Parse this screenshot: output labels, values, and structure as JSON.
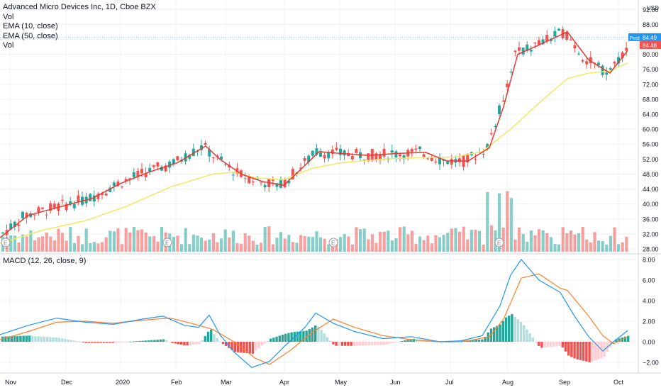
{
  "legend": {
    "title": "Advanced Micro Devices Inc, 1D, Cboe BZX",
    "vol1": "Vol",
    "ema10": "EMA (10, close)",
    "ema50": "EMA (50, close)",
    "vol2": "Vol"
  },
  "macd_legend": "MACD (12, 26, close, 9)",
  "currency": "USD",
  "tags": {
    "post_label": "Post",
    "post_value": "84.49",
    "last_value": "84.48"
  },
  "colors": {
    "up": "#26a69a",
    "down": "#ef5350",
    "ema10": "#e53935",
    "ema50": "#f5e663",
    "macd": "#2196f3",
    "signal": "#ff7f2a",
    "post": "#2196f3"
  },
  "earnings_marker": "E",
  "chart_data": [
    {
      "type": "candlestick",
      "title": "Advanced Micro Devices Inc, 1D, Cboe BZX",
      "y_ticks": [
        "92.00",
        "88.00",
        "84.00",
        "80.00",
        "76.00",
        "72.00",
        "68.00",
        "64.00",
        "60.00",
        "56.00",
        "52.00",
        "48.00",
        "44.00",
        "40.00",
        "36.00",
        "32.00",
        "28.00"
      ],
      "ylim": [
        26.5,
        95
      ],
      "x_ticks": [
        "Nov",
        "Dec",
        "2020",
        "Feb",
        "Mar",
        "Apr",
        "May",
        "Jun",
        "Jul",
        "Aug",
        "Sep",
        "Oct"
      ],
      "series": [
        {
          "name": "EMA (10, close)",
          "points": [
            [
              0,
              31.0
            ],
            [
              40,
              37
            ],
            [
              90,
              39.5
            ],
            [
              130,
              41.5
            ],
            [
              170,
              45.5
            ],
            [
              210,
              48.5
            ],
            [
              250,
              51.0
            ],
            [
              290,
              55.5
            ],
            [
              310,
              52.0
            ],
            [
              340,
              48.0
            ],
            [
              370,
              46.0
            ],
            [
              400,
              45.0
            ],
            [
              420,
              48.5
            ],
            [
              450,
              54.0
            ],
            [
              480,
              53.5
            ],
            [
              520,
              53.0
            ],
            [
              560,
              53.5
            ],
            [
              600,
              53.8
            ],
            [
              630,
              51.5
            ],
            [
              660,
              51.5
            ],
            [
              690,
              55.0
            ],
            [
              710,
              66.0
            ],
            [
              730,
              80.0
            ],
            [
              760,
              82.5
            ],
            [
              800,
              86.0
            ],
            [
              830,
              78.5
            ],
            [
              860,
              75.0
            ],
            [
              885,
              81.0
            ]
          ]
        },
        {
          "name": "EMA (50, close)",
          "points": [
            [
              0,
              29.5
            ],
            [
              60,
              33.0
            ],
            [
              120,
              35.5
            ],
            [
              180,
              39.5
            ],
            [
              240,
              44.5
            ],
            [
              300,
              48.0
            ],
            [
              330,
              48.5
            ],
            [
              360,
              47.0
            ],
            [
              400,
              46.5
            ],
            [
              440,
              49.5
            ],
            [
              480,
              51.0
            ],
            [
              540,
              52.0
            ],
            [
              600,
              52.5
            ],
            [
              640,
              52.5
            ],
            [
              680,
              54.0
            ],
            [
              720,
              60.0
            ],
            [
              760,
              67.0
            ],
            [
              800,
              73.5
            ],
            [
              830,
              75.0
            ],
            [
              860,
              75.5
            ],
            [
              885,
              77.7
            ]
          ]
        }
      ],
      "earnings_x": [
        8,
        236,
        470,
        704
      ]
    },
    {
      "type": "line",
      "title": "MACD (12, 26, close, 9)",
      "y_ticks": [
        "8.00",
        "6.00",
        "4.00",
        "2.00",
        "0.00",
        "−2.00"
      ],
      "ylim": [
        -3.0,
        8.5
      ],
      "series": [
        {
          "name": "MACD",
          "points": [
            [
              0,
              0.7
            ],
            [
              40,
              1.6
            ],
            [
              80,
              2.3
            ],
            [
              120,
              1.9
            ],
            [
              160,
              1.7
            ],
            [
              200,
              2.2
            ],
            [
              230,
              2.5
            ],
            [
              260,
              1.6
            ],
            [
              280,
              1.4
            ],
            [
              295,
              2.6
            ],
            [
              310,
              0.7
            ],
            [
              330,
              -1.0
            ],
            [
              355,
              -2.5
            ],
            [
              380,
              -1.9
            ],
            [
              400,
              -0.5
            ],
            [
              430,
              1.4
            ],
            [
              445,
              2.8
            ],
            [
              470,
              1.8
            ],
            [
              500,
              1.0
            ],
            [
              540,
              0.3
            ],
            [
              580,
              0.5
            ],
            [
              620,
              0.0
            ],
            [
              650,
              0.1
            ],
            [
              680,
              0.6
            ],
            [
              705,
              3.5
            ],
            [
              720,
              6.5
            ],
            [
              735,
              8.0
            ],
            [
              760,
              6.0
            ],
            [
              790,
              4.8
            ],
            [
              810,
              2.5
            ],
            [
              830,
              0.5
            ],
            [
              850,
              -0.9
            ],
            [
              865,
              0.0
            ],
            [
              885,
              1.1
            ]
          ]
        },
        {
          "name": "Signal",
          "points": [
            [
              0,
              0.2
            ],
            [
              40,
              1.0
            ],
            [
              80,
              1.9
            ],
            [
              120,
              2.0
            ],
            [
              160,
              1.8
            ],
            [
              200,
              2.1
            ],
            [
              240,
              2.3
            ],
            [
              270,
              1.8
            ],
            [
              300,
              1.2
            ],
            [
              330,
              0.0
            ],
            [
              360,
              -1.6
            ],
            [
              380,
              -2.2
            ],
            [
              410,
              -0.8
            ],
            [
              440,
              0.9
            ],
            [
              470,
              2.2
            ],
            [
              500,
              1.4
            ],
            [
              540,
              0.6
            ],
            [
              580,
              0.2
            ],
            [
              620,
              0.0
            ],
            [
              660,
              0.1
            ],
            [
              690,
              0.5
            ],
            [
              710,
              2.2
            ],
            [
              735,
              6.2
            ],
            [
              760,
              6.6
            ],
            [
              790,
              5.2
            ],
            [
              800,
              5.0
            ],
            [
              830,
              2.5
            ],
            [
              850,
              0.6
            ],
            [
              865,
              -0.2
            ],
            [
              885,
              0.5
            ]
          ]
        }
      ]
    }
  ]
}
